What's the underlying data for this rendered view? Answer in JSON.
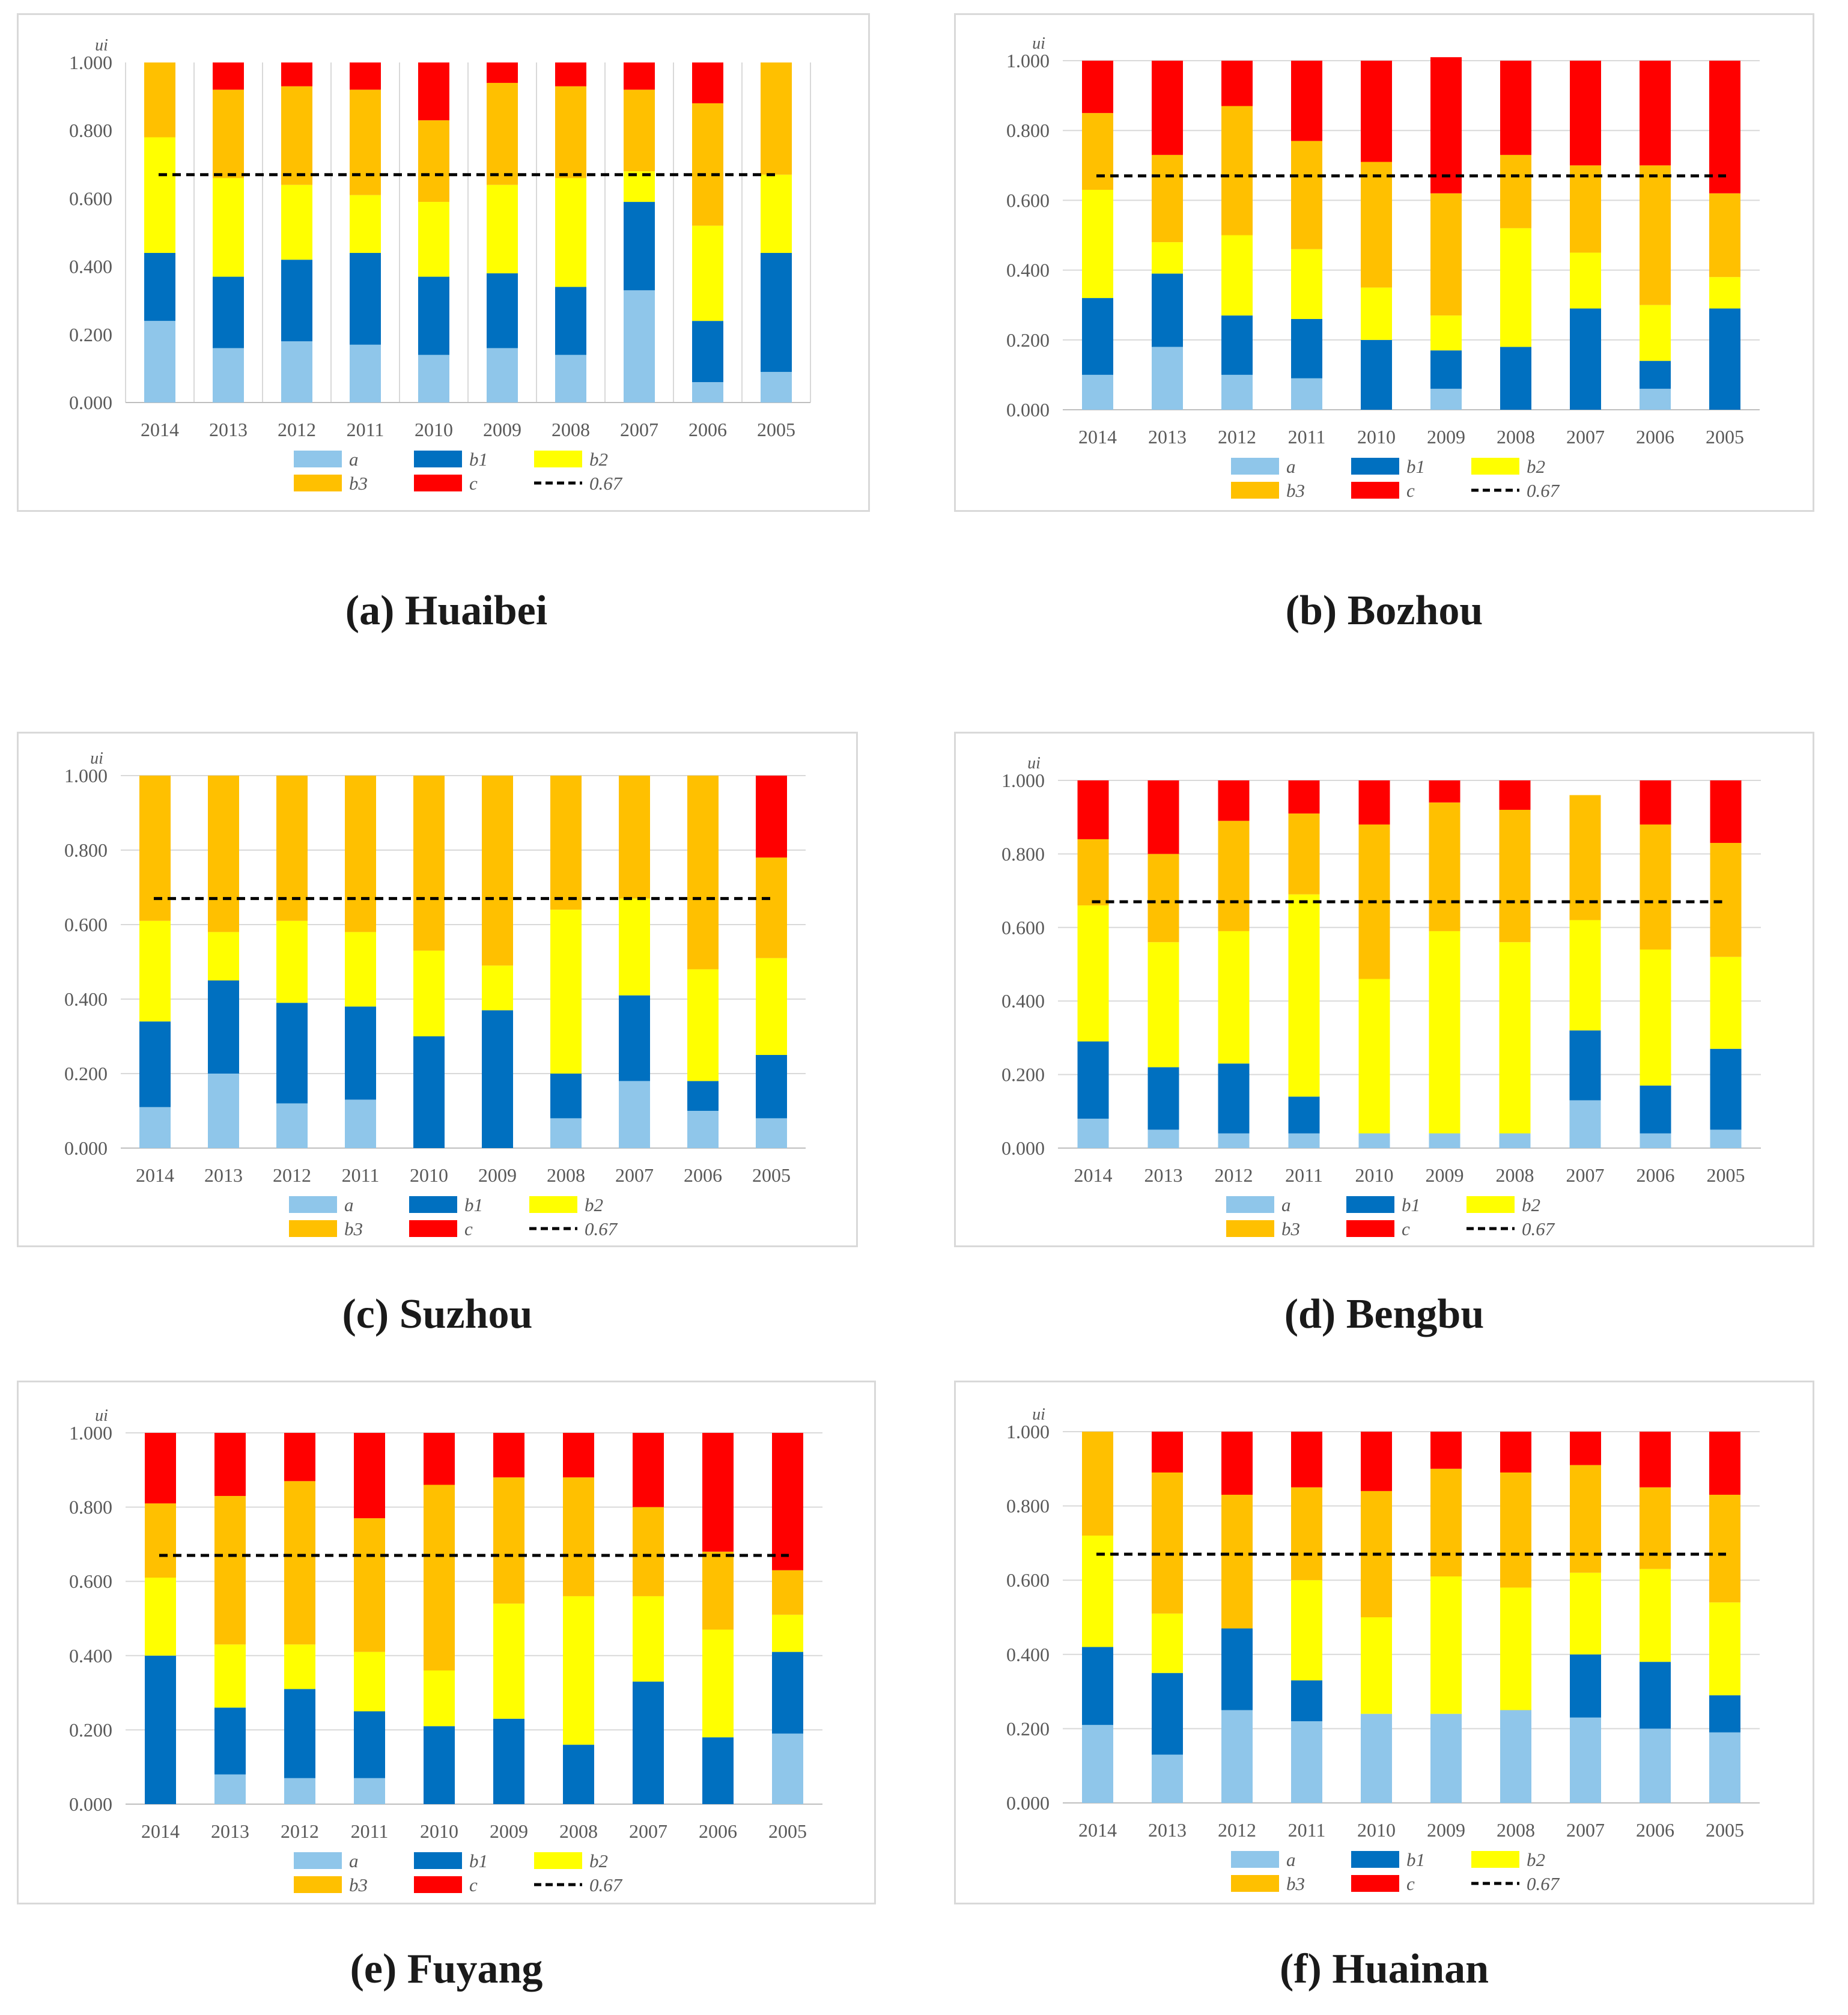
{
  "figure": {
    "colors": {
      "a": "#8fc6ea",
      "b1": "#0070c0",
      "b2": "#ffff00",
      "b3": "#ffc000",
      "c": "#ff0000",
      "threshold": "#000000",
      "grid": "#d9d9d9"
    }
  },
  "chart_data": [
    {
      "id": "a",
      "type": "bar",
      "stacked": true,
      "caption": "(a) Huaibei",
      "ylabel": "ui",
      "ylim": [
        0,
        1
      ],
      "yticks": [
        "0.000",
        "0.200",
        "0.400",
        "0.600",
        "0.800",
        "1.000"
      ],
      "categories": [
        "2014",
        "2013",
        "2012",
        "2011",
        "2010",
        "2009",
        "2008",
        "2007",
        "2006",
        "2005"
      ],
      "gridlines": "vertical",
      "threshold": {
        "value": 0.67,
        "label": "0.67"
      },
      "series": [
        {
          "name": "a",
          "values": [
            0.24,
            0.16,
            0.18,
            0.17,
            0.14,
            0.16,
            0.14,
            0.33,
            0.06,
            0.09
          ]
        },
        {
          "name": "b1",
          "values": [
            0.2,
            0.21,
            0.24,
            0.27,
            0.23,
            0.22,
            0.2,
            0.26,
            0.18,
            0.35
          ]
        },
        {
          "name": "b2",
          "values": [
            0.34,
            0.29,
            0.22,
            0.17,
            0.22,
            0.26,
            0.32,
            0.09,
            0.28,
            0.23
          ]
        },
        {
          "name": "b3",
          "values": [
            0.22,
            0.26,
            0.29,
            0.31,
            0.24,
            0.3,
            0.27,
            0.24,
            0.36,
            0.33
          ]
        },
        {
          "name": "c",
          "values": [
            0.0,
            0.08,
            0.07,
            0.08,
            0.17,
            0.06,
            0.07,
            0.08,
            0.12,
            0.0
          ]
        }
      ],
      "legend": [
        "a",
        "b1",
        "b2",
        "b3",
        "c",
        "0.67"
      ]
    },
    {
      "id": "b",
      "type": "bar",
      "stacked": true,
      "caption": "(b) Bozhou",
      "ylabel": "ui",
      "ylim": [
        0,
        1
      ],
      "yticks": [
        "0.000",
        "0.200",
        "0.400",
        "0.600",
        "0.800",
        "1.000"
      ],
      "categories": [
        "2014",
        "2013",
        "2012",
        "2011",
        "2010",
        "2009",
        "2008",
        "2007",
        "2006",
        "2005"
      ],
      "gridlines": "horizontal",
      "threshold": {
        "value": 0.67,
        "label": "0.67"
      },
      "series": [
        {
          "name": "a",
          "values": [
            0.1,
            0.18,
            0.1,
            0.09,
            0.0,
            0.06,
            0.0,
            0.0,
            0.06,
            0.0
          ]
        },
        {
          "name": "b1",
          "values": [
            0.22,
            0.21,
            0.17,
            0.17,
            0.2,
            0.11,
            0.18,
            0.29,
            0.08,
            0.29
          ]
        },
        {
          "name": "b2",
          "values": [
            0.31,
            0.09,
            0.23,
            0.2,
            0.15,
            0.1,
            0.34,
            0.16,
            0.16,
            0.09
          ]
        },
        {
          "name": "b3",
          "values": [
            0.22,
            0.25,
            0.37,
            0.31,
            0.36,
            0.35,
            0.21,
            0.25,
            0.4,
            0.24
          ]
        },
        {
          "name": "c",
          "values": [
            0.15,
            0.27,
            0.13,
            0.23,
            0.29,
            0.39,
            0.27,
            0.3,
            0.3,
            0.38
          ]
        }
      ],
      "legend": [
        "a",
        "b1",
        "b2",
        "b3",
        "c",
        "0.67"
      ]
    },
    {
      "id": "c",
      "type": "bar",
      "stacked": true,
      "caption": "(c) Suzhou",
      "ylabel": "ui",
      "ylim": [
        0,
        1
      ],
      "yticks": [
        "0.000",
        "0.200",
        "0.400",
        "0.600",
        "0.800",
        "1.000"
      ],
      "categories": [
        "2014",
        "2013",
        "2012",
        "2011",
        "2010",
        "2009",
        "2008",
        "2007",
        "2006",
        "2005"
      ],
      "gridlines": "horizontal",
      "threshold": {
        "value": 0.67,
        "label": "0.67"
      },
      "series": [
        {
          "name": "a",
          "values": [
            0.11,
            0.2,
            0.12,
            0.13,
            0.0,
            0.0,
            0.08,
            0.18,
            0.1,
            0.08
          ]
        },
        {
          "name": "b1",
          "values": [
            0.23,
            0.25,
            0.27,
            0.25,
            0.3,
            0.37,
            0.12,
            0.23,
            0.08,
            0.17
          ]
        },
        {
          "name": "b2",
          "values": [
            0.27,
            0.13,
            0.22,
            0.2,
            0.23,
            0.12,
            0.44,
            0.26,
            0.3,
            0.26
          ]
        },
        {
          "name": "b3",
          "values": [
            0.39,
            0.42,
            0.39,
            0.42,
            0.47,
            0.51,
            0.36,
            0.33,
            0.52,
            0.27
          ]
        },
        {
          "name": "c",
          "values": [
            0.0,
            0.0,
            0.0,
            0.0,
            0.0,
            0.0,
            0.0,
            0.0,
            0.0,
            0.22
          ]
        }
      ],
      "legend": [
        "a",
        "b1",
        "b2",
        "b3",
        "c",
        "0.67"
      ]
    },
    {
      "id": "d",
      "type": "bar",
      "stacked": true,
      "caption": "(d) Bengbu",
      "ylabel": "ui",
      "ylim": [
        0,
        1
      ],
      "yticks": [
        "0.000",
        "0.200",
        "0.400",
        "0.600",
        "0.800",
        "1.000"
      ],
      "categories": [
        "2014",
        "2013",
        "2012",
        "2011",
        "2010",
        "2009",
        "2008",
        "2007",
        "2006",
        "2005"
      ],
      "gridlines": "horizontal",
      "threshold": {
        "value": 0.67,
        "label": "0.67"
      },
      "series": [
        {
          "name": "a",
          "values": [
            0.08,
            0.05,
            0.04,
            0.04,
            0.04,
            0.04,
            0.04,
            0.13,
            0.04,
            0.05
          ]
        },
        {
          "name": "b1",
          "values": [
            0.21,
            0.17,
            0.19,
            0.1,
            0.0,
            0.0,
            0.0,
            0.19,
            0.13,
            0.22
          ]
        },
        {
          "name": "b2",
          "values": [
            0.37,
            0.34,
            0.36,
            0.55,
            0.42,
            0.55,
            0.52,
            0.3,
            0.37,
            0.25
          ]
        },
        {
          "name": "b3",
          "values": [
            0.18,
            0.24,
            0.3,
            0.22,
            0.42,
            0.35,
            0.36,
            0.34,
            0.34,
            0.31
          ]
        },
        {
          "name": "c",
          "values": [
            0.16,
            0.2,
            0.11,
            0.09,
            0.12,
            0.06,
            0.08,
            0.0,
            0.12,
            0.17
          ]
        }
      ],
      "legend": [
        "a",
        "b1",
        "b2",
        "b3",
        "c",
        "0.67"
      ]
    },
    {
      "id": "e",
      "type": "bar",
      "stacked": true,
      "caption": "(e) Fuyang",
      "ylabel": "ui",
      "ylim": [
        0,
        1
      ],
      "yticks": [
        "0.000",
        "0.200",
        "0.400",
        "0.600",
        "0.800",
        "1.000"
      ],
      "categories": [
        "2014",
        "2013",
        "2012",
        "2011",
        "2010",
        "2009",
        "2008",
        "2007",
        "2006",
        "2005"
      ],
      "gridlines": "horizontal",
      "threshold": {
        "value": 0.67,
        "label": "0.67"
      },
      "series": [
        {
          "name": "a",
          "values": [
            0.0,
            0.08,
            0.07,
            0.07,
            0.0,
            0.0,
            0.0,
            0.0,
            0.0,
            0.19
          ]
        },
        {
          "name": "b1",
          "values": [
            0.4,
            0.18,
            0.24,
            0.18,
            0.21,
            0.23,
            0.16,
            0.33,
            0.18,
            0.22
          ]
        },
        {
          "name": "b2",
          "values": [
            0.21,
            0.17,
            0.12,
            0.16,
            0.15,
            0.31,
            0.4,
            0.23,
            0.29,
            0.1
          ]
        },
        {
          "name": "b3",
          "values": [
            0.2,
            0.4,
            0.44,
            0.36,
            0.5,
            0.34,
            0.32,
            0.24,
            0.21,
            0.12
          ]
        },
        {
          "name": "c",
          "values": [
            0.19,
            0.17,
            0.13,
            0.23,
            0.14,
            0.12,
            0.12,
            0.2,
            0.32,
            0.37
          ]
        }
      ],
      "legend": [
        "a",
        "b1",
        "b2",
        "b3",
        "c",
        "0.67"
      ]
    },
    {
      "id": "f",
      "type": "bar",
      "stacked": true,
      "caption": "(f) Huainan",
      "ylabel": "ui",
      "ylim": [
        0,
        1
      ],
      "yticks": [
        "0.000",
        "0.200",
        "0.400",
        "0.600",
        "0.800",
        "1.000"
      ],
      "categories": [
        "2014",
        "2013",
        "2012",
        "2011",
        "2010",
        "2009",
        "2008",
        "2007",
        "2006",
        "2005"
      ],
      "gridlines": "horizontal",
      "threshold": {
        "value": 0.67,
        "label": "0.67"
      },
      "series": [
        {
          "name": "a",
          "values": [
            0.21,
            0.13,
            0.25,
            0.22,
            0.24,
            0.24,
            0.25,
            0.23,
            0.2,
            0.19
          ]
        },
        {
          "name": "b1",
          "values": [
            0.21,
            0.22,
            0.22,
            0.11,
            0.0,
            0.0,
            0.0,
            0.17,
            0.18,
            0.1
          ]
        },
        {
          "name": "b2",
          "values": [
            0.3,
            0.16,
            0.0,
            0.27,
            0.26,
            0.37,
            0.33,
            0.22,
            0.25,
            0.25
          ]
        },
        {
          "name": "b3",
          "values": [
            0.28,
            0.38,
            0.36,
            0.25,
            0.34,
            0.29,
            0.31,
            0.29,
            0.22,
            0.29
          ]
        },
        {
          "name": "c",
          "values": [
            0.0,
            0.11,
            0.17,
            0.15,
            0.16,
            0.1,
            0.11,
            0.09,
            0.15,
            0.17
          ]
        }
      ],
      "legend": [
        "a",
        "b1",
        "b2",
        "b3",
        "c",
        "0.67"
      ]
    }
  ]
}
